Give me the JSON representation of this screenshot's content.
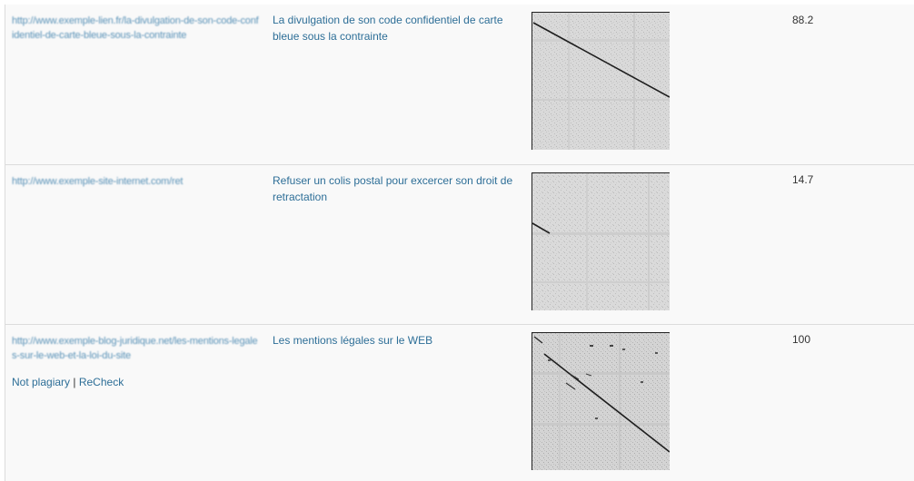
{
  "rows": [
    {
      "url": "http://www.exemple-lien.fr/la-divulgation-de-son-code-confidentiel-de-carte-bleue-sous-la-contrainte",
      "title": "La divulgation de son code confidentiel de carte bleue sous la contrainte",
      "score": "88.2",
      "dotplot_diagonal": "long main diagonal"
    },
    {
      "url": "http://www.exemple-site-internet.com/ret",
      "title": "Refuser un colis postal pour excercer son droit de retractation",
      "score": "14.7",
      "dotplot_diagonal": "short segment"
    },
    {
      "url": "http://www.exemple-blog-juridique.net/les-mentions-legales-sur-le-web-et-la-loi-du-site",
      "title": "Les mentions légales sur le WEB",
      "score": "100",
      "dotplot_diagonal": "full diagonal",
      "actions": {
        "not_plagiary": "Not plagiary",
        "separator": "|",
        "recheck": "ReCheck"
      }
    }
  ]
}
